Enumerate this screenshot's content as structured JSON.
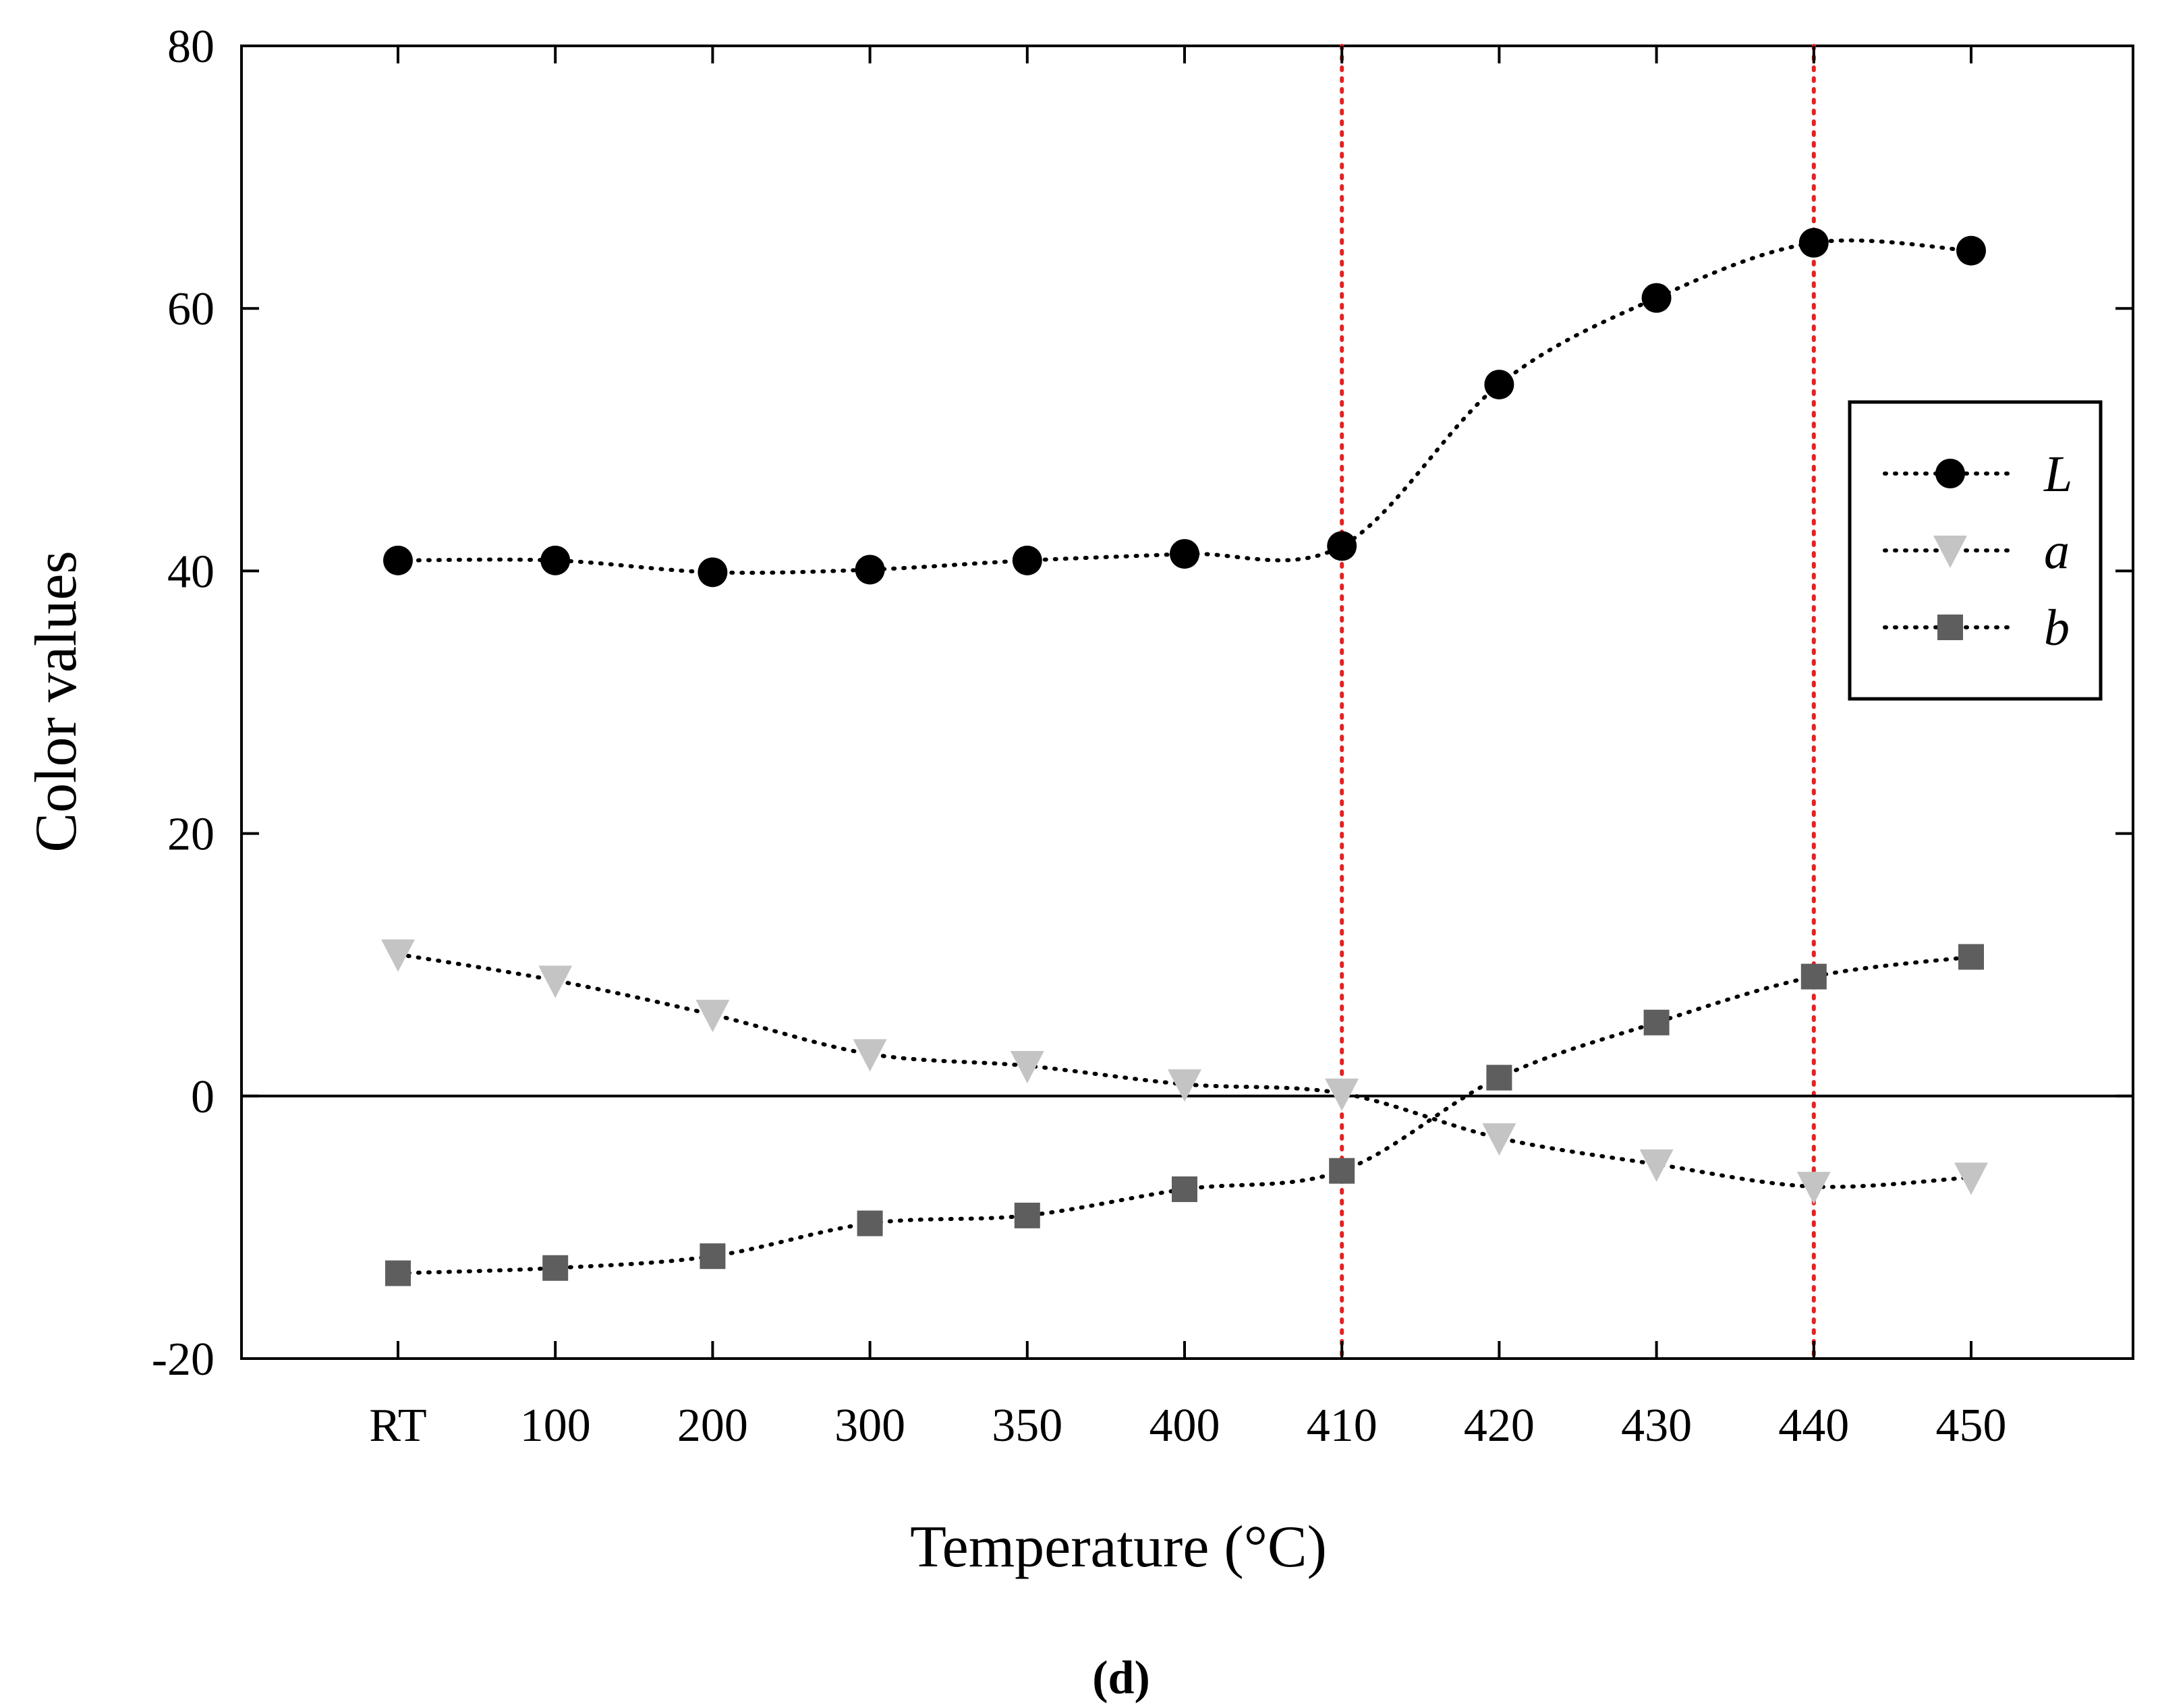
{
  "chart_data": {
    "type": "line",
    "title": "",
    "xlabel": "Temperature (°C)",
    "ylabel": "Color values",
    "panel_label": "(d)",
    "categories": [
      "RT",
      "100",
      "200",
      "300",
      "350",
      "400",
      "410",
      "420",
      "430",
      "440",
      "450"
    ],
    "yticks": [
      "-20",
      "0",
      "20",
      "40",
      "60",
      "80"
    ],
    "ylim": [
      -20,
      80
    ],
    "zero_line": 0,
    "reference_lines": [
      {
        "category": "410",
        "color": "#e32222"
      },
      {
        "category": "440",
        "color": "#e32222"
      }
    ],
    "legend_position": "right",
    "series": [
      {
        "name": "L",
        "marker": "circle",
        "color": "#000000",
        "values": [
          40.8,
          40.8,
          39.9,
          40.1,
          40.8,
          41.3,
          41.9,
          54.2,
          60.8,
          65.0,
          64.4
        ]
      },
      {
        "name": "a",
        "marker": "triangle-down",
        "color": "#c4c4c4",
        "values": [
          10.8,
          8.8,
          6.2,
          3.2,
          2.3,
          0.9,
          0.2,
          -3.2,
          -5.2,
          -6.9,
          -6.2
        ]
      },
      {
        "name": "b",
        "marker": "square",
        "color": "#5e5e5e",
        "values": [
          -13.5,
          -13.1,
          -12.2,
          -9.7,
          -9.1,
          -7.1,
          -5.7,
          1.4,
          5.6,
          9.1,
          10.6
        ]
      }
    ]
  }
}
